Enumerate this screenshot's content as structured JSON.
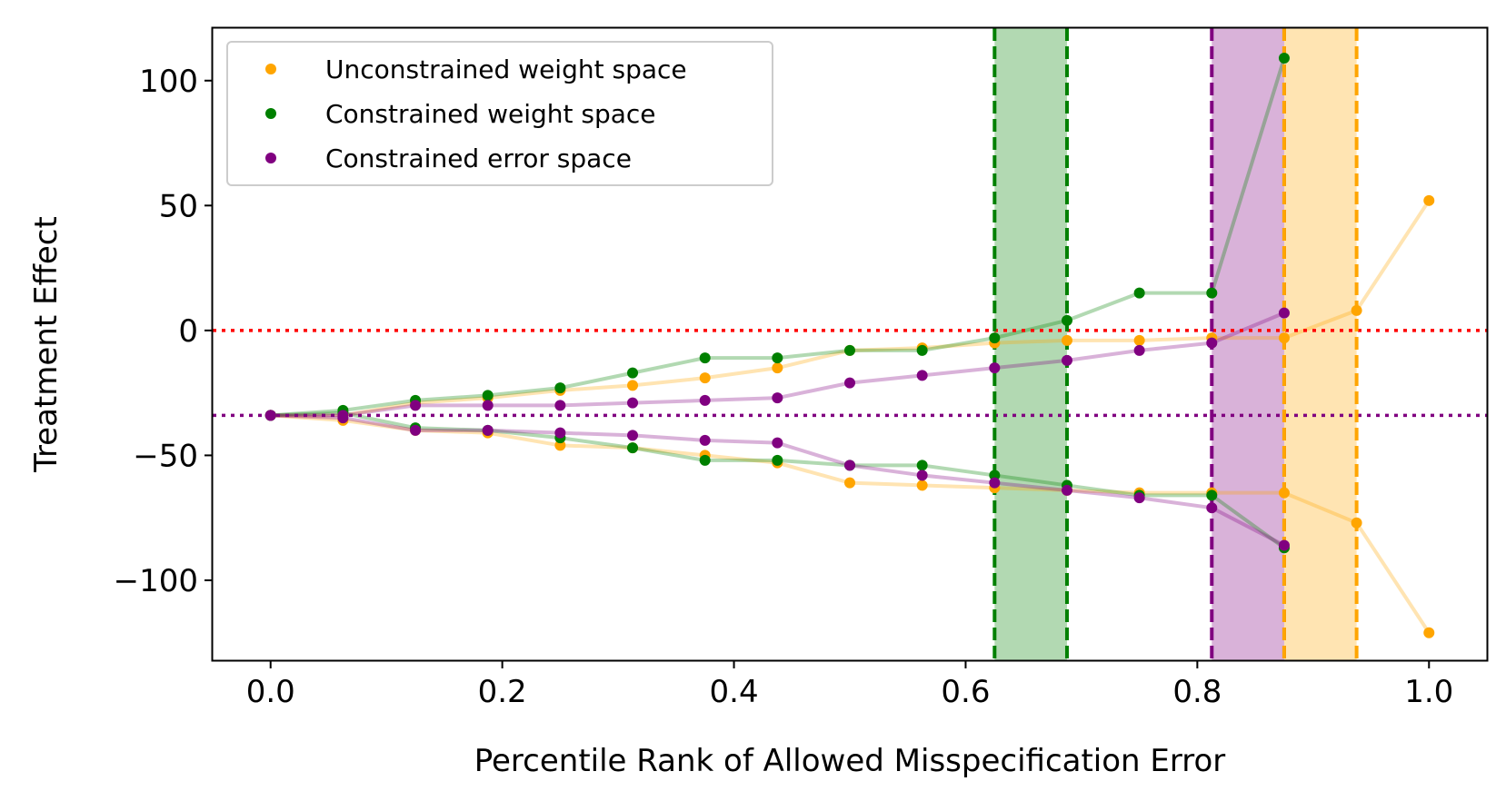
{
  "chart_data": {
    "type": "line",
    "title": "",
    "xlabel": "Percentile Rank of Allowed Misspecification Error",
    "ylabel": "Treatment Effect",
    "xlim": [
      -0.05,
      1.05
    ],
    "ylim": [
      -132,
      121
    ],
    "xticks": [
      0.0,
      0.2,
      0.4,
      0.6,
      0.8,
      1.0
    ],
    "xtick_labels": [
      "0.0",
      "0.2",
      "0.4",
      "0.6",
      "0.8",
      "1.0"
    ],
    "yticks": [
      100,
      50,
      0,
      -50,
      -100
    ],
    "ytick_labels": [
      "100",
      "50",
      "0",
      "−50",
      "−100"
    ],
    "legend_position": "top-left",
    "series": [
      {
        "name": "Unconstrained weight space",
        "color": "#ffa500",
        "x": [
          0.0,
          0.0625,
          0.125,
          0.1875,
          0.25,
          0.3125,
          0.375,
          0.4375,
          0.5,
          0.5625,
          0.625,
          0.6875,
          0.75,
          0.8125,
          0.875,
          0.9375,
          1.0
        ],
        "upper": [
          -34,
          -34,
          -29,
          -27,
          -24,
          -22,
          -19,
          -15,
          -8,
          -7,
          -5,
          -4,
          -4,
          -3,
          -3,
          8,
          52
        ],
        "lower": [
          -34,
          -36,
          -40,
          -41,
          -46,
          -47,
          -50,
          -53,
          -61,
          -62,
          -63,
          -64,
          -65,
          -65,
          -65,
          -77,
          -121
        ]
      },
      {
        "name": "Constrained weight space",
        "color": "#008000",
        "x": [
          0.0,
          0.0625,
          0.125,
          0.1875,
          0.25,
          0.3125,
          0.375,
          0.4375,
          0.5,
          0.5625,
          0.625,
          0.6875,
          0.75,
          0.8125,
          0.875
        ],
        "upper": [
          -34,
          -32,
          -28,
          -26,
          -23,
          -17,
          -11,
          -11,
          -8,
          -8,
          -3,
          4,
          15,
          15,
          109
        ],
        "lower": [
          -34,
          -33,
          -39,
          -40,
          -43,
          -47,
          -52,
          -52,
          -54,
          -54,
          -58,
          -62,
          -66,
          -66,
          -87
        ]
      },
      {
        "name": "Constrained error space",
        "color": "#800080",
        "x": [
          0.0,
          0.0625,
          0.125,
          0.1875,
          0.25,
          0.3125,
          0.375,
          0.4375,
          0.5,
          0.5625,
          0.625,
          0.6875,
          0.75,
          0.8125,
          0.875
        ],
        "upper": [
          -34,
          -34,
          -30,
          -30,
          -30,
          -29,
          -28,
          -27,
          -21,
          -18,
          -15,
          -12,
          -8,
          -5,
          7
        ],
        "lower": [
          -34,
          -35,
          -40,
          -40,
          -41,
          -42,
          -44,
          -45,
          -54,
          -58,
          -61,
          -64,
          -67,
          -71,
          -86
        ]
      }
    ],
    "reference_lines": [
      {
        "orientation": "horizontal",
        "y": 0,
        "color": "#ff0000",
        "style": "dotted"
      },
      {
        "orientation": "horizontal",
        "y": -34,
        "color": "#800080",
        "style": "dotted"
      }
    ],
    "shaded_bands": [
      {
        "series": "Constrained weight space",
        "x_start": 0.625,
        "x_end": 0.6875,
        "color": "#008000"
      },
      {
        "series": "Constrained error space",
        "x_start": 0.8125,
        "x_end": 0.875,
        "color": "#800080"
      },
      {
        "series": "Unconstrained weight space",
        "x_start": 0.875,
        "x_end": 0.9375,
        "color": "#ffa500"
      }
    ]
  }
}
